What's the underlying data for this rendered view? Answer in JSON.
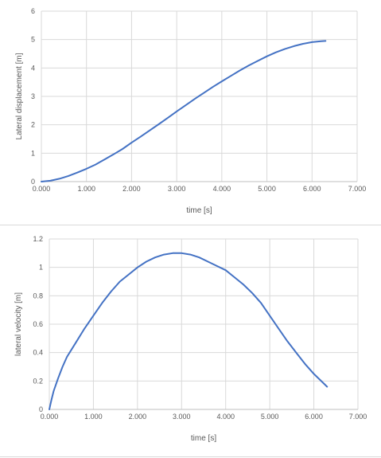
{
  "chart_data": [
    {
      "type": "line",
      "title": "",
      "xlabel": "time [s]",
      "ylabel": "Lateral displacement [m]",
      "xlim": [
        0,
        7
      ],
      "ylim": [
        0,
        6
      ],
      "x_ticks": [
        "0.000",
        "1.000",
        "2.000",
        "3.000",
        "4.000",
        "5.000",
        "6.000",
        "7.000"
      ],
      "y_ticks": [
        "0",
        "1",
        "2",
        "3",
        "4",
        "5",
        "6"
      ],
      "grid": true,
      "legend": "none",
      "series": [
        {
          "color": "#4472c4",
          "x": [
            0.0,
            0.2,
            0.4,
            0.6,
            0.8,
            1.0,
            1.2,
            1.4,
            1.6,
            1.8,
            2.0,
            2.2,
            2.4,
            2.6,
            2.8,
            3.0,
            3.2,
            3.4,
            3.6,
            3.8,
            4.0,
            4.2,
            4.4,
            4.6,
            4.8,
            5.0,
            5.2,
            5.4,
            5.6,
            5.8,
            6.0,
            6.2,
            6.3
          ],
          "y": [
            0.0,
            0.03,
            0.1,
            0.2,
            0.32,
            0.45,
            0.6,
            0.78,
            0.96,
            1.15,
            1.37,
            1.58,
            1.8,
            2.02,
            2.24,
            2.47,
            2.69,
            2.91,
            3.12,
            3.33,
            3.53,
            3.72,
            3.91,
            4.09,
            4.25,
            4.41,
            4.55,
            4.67,
            4.77,
            4.85,
            4.91,
            4.94,
            4.95
          ]
        }
      ]
    },
    {
      "type": "line",
      "title": "",
      "xlabel": "time [s]",
      "ylabel": "lateral velocity [m]",
      "xlim": [
        0,
        7
      ],
      "ylim": [
        0,
        1.2
      ],
      "x_ticks": [
        "0.000",
        "1.000",
        "2.000",
        "3.000",
        "4.000",
        "5.000",
        "6.000",
        "7.000"
      ],
      "y_ticks": [
        "0",
        "0.2",
        "0.4",
        "0.6",
        "0.8",
        "1",
        "1.2"
      ],
      "grid": true,
      "legend": "none",
      "series": [
        {
          "color": "#4472c4",
          "x": [
            0.0,
            0.05,
            0.1,
            0.2,
            0.3,
            0.4,
            0.6,
            0.8,
            1.0,
            1.2,
            1.4,
            1.6,
            1.8,
            2.0,
            2.2,
            2.4,
            2.6,
            2.8,
            3.0,
            3.2,
            3.4,
            3.6,
            3.8,
            4.0,
            4.2,
            4.4,
            4.6,
            4.8,
            5.0,
            5.2,
            5.4,
            5.6,
            5.8,
            6.0,
            6.2,
            6.3
          ],
          "y": [
            0.0,
            0.07,
            0.13,
            0.22,
            0.3,
            0.37,
            0.47,
            0.57,
            0.66,
            0.75,
            0.83,
            0.9,
            0.95,
            1.0,
            1.04,
            1.07,
            1.09,
            1.1,
            1.1,
            1.09,
            1.07,
            1.04,
            1.01,
            0.98,
            0.93,
            0.88,
            0.82,
            0.75,
            0.66,
            0.57,
            0.48,
            0.4,
            0.32,
            0.25,
            0.19,
            0.16
          ]
        }
      ]
    }
  ]
}
